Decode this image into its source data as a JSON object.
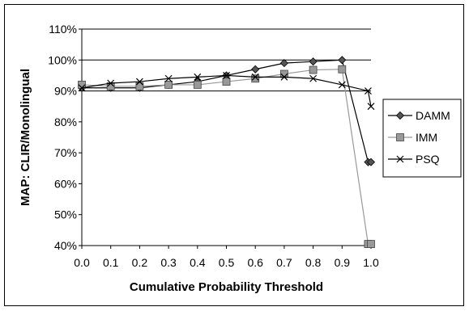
{
  "chart_data": {
    "type": "line",
    "title": "",
    "xlabel": "Cumulative Probability Threshold",
    "ylabel": "MAP: CLIR/Monolingual",
    "x": [
      0.0,
      0.1,
      0.2,
      0.3,
      0.4,
      0.5,
      0.6,
      0.7,
      0.8,
      0.9,
      0.99,
      1.0
    ],
    "x_tick_labels": [
      "0.0",
      "0.1",
      "0.2",
      "0.3",
      "0.4",
      "0.5",
      "0.6",
      "0.7",
      "0.8",
      "0.9",
      "1.0"
    ],
    "y_tick_labels": [
      "40%",
      "50%",
      "60%",
      "70%",
      "80%",
      "90%",
      "100%",
      "110%"
    ],
    "xlim": [
      0.0,
      1.0
    ],
    "ylim": [
      40,
      110
    ],
    "grid": "horizontal lines at 90%, 100%, 110%",
    "legend_position": "right",
    "series": [
      {
        "name": "DAMM",
        "marker": "diamond",
        "color": "#000000",
        "values": [
          91,
          91,
          91,
          92,
          93,
          95,
          97,
          99,
          99.5,
          100,
          67,
          67
        ]
      },
      {
        "name": "IMM",
        "marker": "square",
        "color": "#999999",
        "values": [
          92,
          91.5,
          91.5,
          92,
          92,
          93,
          94,
          95.5,
          96.8,
          97,
          40.5,
          40.5
        ]
      },
      {
        "name": "PSQ",
        "marker": "x",
        "color": "#000000",
        "values": [
          91,
          92.5,
          93,
          94,
          94.5,
          95,
          94.5,
          94.5,
          94,
          92,
          90,
          85
        ]
      }
    ]
  }
}
